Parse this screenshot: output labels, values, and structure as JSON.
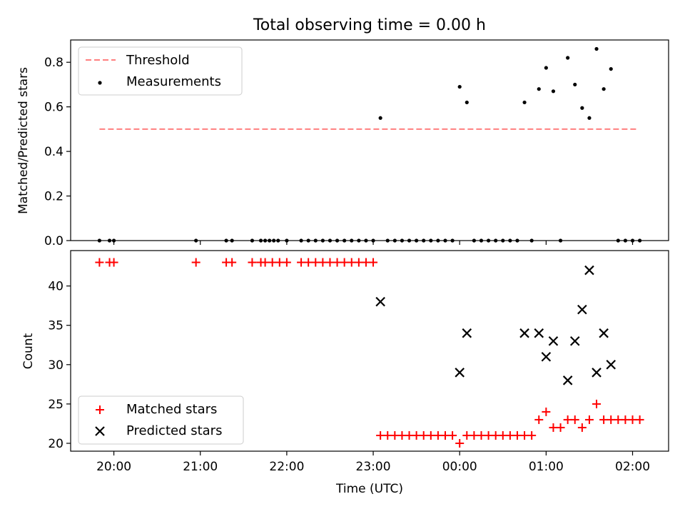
{
  "chart_data": [
    {
      "type": "scatter",
      "title": "Total observing time = 0.00 h",
      "xlabel": "",
      "ylabel": "Matched/Predicted stars",
      "ylim": [
        0,
        0.9
      ],
      "yticks": [
        "0.0",
        "0.2",
        "0.4",
        "0.6",
        "0.8"
      ],
      "legend_position": "top-left",
      "threshold": {
        "name": "Threshold",
        "value": 0.5,
        "x_start": "19:50",
        "x_end": "02:03",
        "color": "#ff7f7f"
      },
      "series": [
        {
          "name": "Measurements",
          "color": "#000000",
          "points": [
            [
              "19:50",
              0
            ],
            [
              "19:57",
              0
            ],
            [
              "20:00",
              0
            ],
            [
              "20:57",
              0
            ],
            [
              "21:18",
              0
            ],
            [
              "21:22",
              0
            ],
            [
              "21:36",
              0
            ],
            [
              "21:42",
              0
            ],
            [
              "21:45",
              0
            ],
            [
              "21:48",
              0
            ],
            [
              "21:51",
              0
            ],
            [
              "21:54",
              0
            ],
            [
              "22:00",
              0
            ],
            [
              "22:10",
              0
            ],
            [
              "22:15",
              0
            ],
            [
              "22:20",
              0
            ],
            [
              "22:25",
              0
            ],
            [
              "22:30",
              0
            ],
            [
              "22:35",
              0
            ],
            [
              "22:40",
              0
            ],
            [
              "22:45",
              0
            ],
            [
              "22:50",
              0
            ],
            [
              "22:55",
              0
            ],
            [
              "23:00",
              0
            ],
            [
              "23:05",
              0.55
            ],
            [
              "23:10",
              0
            ],
            [
              "23:15",
              0
            ],
            [
              "23:20",
              0
            ],
            [
              "23:25",
              0
            ],
            [
              "23:30",
              0
            ],
            [
              "23:35",
              0
            ],
            [
              "23:40",
              0
            ],
            [
              "23:45",
              0
            ],
            [
              "23:50",
              0
            ],
            [
              "23:55",
              0
            ],
            [
              "00:00",
              0.69
            ],
            [
              "00:05",
              0.62
            ],
            [
              "00:10",
              0
            ],
            [
              "00:15",
              0
            ],
            [
              "00:20",
              0
            ],
            [
              "00:25",
              0
            ],
            [
              "00:30",
              0
            ],
            [
              "00:35",
              0
            ],
            [
              "00:40",
              0
            ],
            [
              "00:45",
              0.62
            ],
            [
              "00:50",
              0
            ],
            [
              "00:55",
              0.68
            ],
            [
              "01:00",
              0.775
            ],
            [
              "01:05",
              0.67
            ],
            [
              "01:10",
              0
            ],
            [
              "01:15",
              0.82
            ],
            [
              "01:20",
              0.7
            ],
            [
              "01:25",
              0.595
            ],
            [
              "01:30",
              0.55
            ],
            [
              "01:35",
              0.86
            ],
            [
              "01:40",
              0.68
            ],
            [
              "01:45",
              0.77
            ],
            [
              "01:50",
              0
            ],
            [
              "01:55",
              0
            ],
            [
              "02:00",
              0
            ],
            [
              "02:05",
              0
            ]
          ]
        }
      ]
    },
    {
      "type": "scatter",
      "title": "",
      "xlabel": "Time (UTC)",
      "ylabel": "Count",
      "ylim": [
        19,
        44.5
      ],
      "yticks": [
        "20",
        "25",
        "30",
        "35",
        "40"
      ],
      "xlim": [
        "19:30",
        "02:25"
      ],
      "xticks": [
        "20:00",
        "21:00",
        "22:00",
        "23:00",
        "00:00",
        "01:00",
        "02:00"
      ],
      "legend_position": "bottom-left",
      "series": [
        {
          "name": "Matched stars",
          "marker": "plus",
          "color": "#ff0000",
          "points": [
            [
              "19:50",
              43
            ],
            [
              "19:57",
              43
            ],
            [
              "20:00",
              43
            ],
            [
              "20:57",
              43
            ],
            [
              "21:18",
              43
            ],
            [
              "21:22",
              43
            ],
            [
              "21:36",
              43
            ],
            [
              "21:42",
              43
            ],
            [
              "21:45",
              43
            ],
            [
              "21:50",
              43
            ],
            [
              "21:55",
              43
            ],
            [
              "22:00",
              43
            ],
            [
              "22:10",
              43
            ],
            [
              "22:15",
              43
            ],
            [
              "22:20",
              43
            ],
            [
              "22:25",
              43
            ],
            [
              "22:30",
              43
            ],
            [
              "22:35",
              43
            ],
            [
              "22:40",
              43
            ],
            [
              "22:45",
              43
            ],
            [
              "22:50",
              43
            ],
            [
              "22:55",
              43
            ],
            [
              "23:00",
              43
            ],
            [
              "23:05",
              21
            ],
            [
              "23:10",
              21
            ],
            [
              "23:15",
              21
            ],
            [
              "23:20",
              21
            ],
            [
              "23:25",
              21
            ],
            [
              "23:30",
              21
            ],
            [
              "23:35",
              21
            ],
            [
              "23:40",
              21
            ],
            [
              "23:45",
              21
            ],
            [
              "23:50",
              21
            ],
            [
              "23:55",
              21
            ],
            [
              "00:00",
              20
            ],
            [
              "00:05",
              21
            ],
            [
              "00:10",
              21
            ],
            [
              "00:15",
              21
            ],
            [
              "00:20",
              21
            ],
            [
              "00:25",
              21
            ],
            [
              "00:30",
              21
            ],
            [
              "00:35",
              21
            ],
            [
              "00:40",
              21
            ],
            [
              "00:45",
              21
            ],
            [
              "00:50",
              21
            ],
            [
              "00:55",
              23
            ],
            [
              "01:00",
              24
            ],
            [
              "01:05",
              22
            ],
            [
              "01:10",
              22
            ],
            [
              "01:15",
              23
            ],
            [
              "01:20",
              23
            ],
            [
              "01:25",
              22
            ],
            [
              "01:30",
              23
            ],
            [
              "01:35",
              25
            ],
            [
              "01:40",
              23
            ],
            [
              "01:45",
              23
            ],
            [
              "01:50",
              23
            ],
            [
              "01:55",
              23
            ],
            [
              "02:00",
              23
            ],
            [
              "02:05",
              23
            ]
          ]
        },
        {
          "name": "Predicted stars",
          "marker": "x",
          "color": "#000000",
          "points": [
            [
              "23:05",
              38
            ],
            [
              "00:00",
              29
            ],
            [
              "00:05",
              34
            ],
            [
              "00:45",
              34
            ],
            [
              "00:55",
              34
            ],
            [
              "01:00",
              31
            ],
            [
              "01:05",
              33
            ],
            [
              "01:15",
              28
            ],
            [
              "01:20",
              33
            ],
            [
              "01:25",
              37
            ],
            [
              "01:30",
              42
            ],
            [
              "01:35",
              29
            ],
            [
              "01:40",
              34
            ],
            [
              "01:45",
              30
            ]
          ]
        }
      ]
    }
  ]
}
